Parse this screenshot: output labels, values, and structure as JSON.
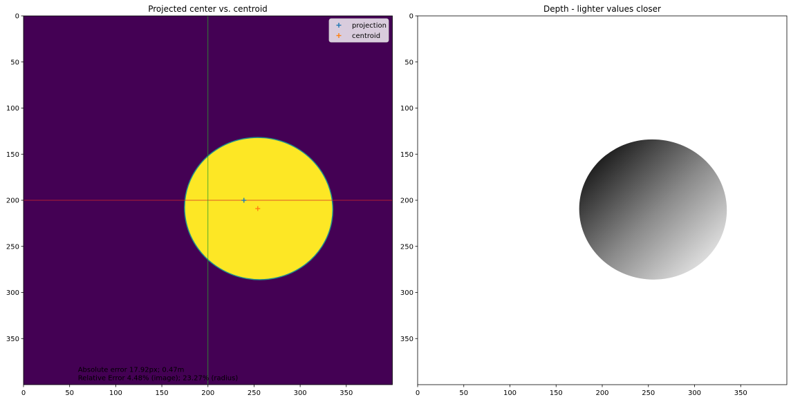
{
  "chart_data": [
    {
      "type": "heatmap",
      "title": "Projected center vs. centroid",
      "xlabel": "",
      "ylabel": "",
      "xlim": [
        0,
        400
      ],
      "ylim": [
        400,
        0
      ],
      "xticks": [
        0,
        50,
        100,
        150,
        200,
        250,
        300,
        350
      ],
      "yticks": [
        0,
        50,
        100,
        150,
        200,
        250,
        300,
        350
      ],
      "colors": {
        "background": "#440154",
        "mask": "#fde725",
        "contour": "#21918c",
        "hline": "#d62728",
        "vline": "#2ca02c",
        "projection": "#1f77b4",
        "centroid": "#ff7f0e"
      },
      "mask_ellipse": {
        "cx": 255,
        "cy": 209,
        "rx": 80.5,
        "ry": 77,
        "rotate": 10
      },
      "guide_lines": {
        "y": 200,
        "x": 200
      },
      "series": [
        {
          "name": "projection",
          "marker": "+",
          "points": [
            [
              239,
              200
            ]
          ]
        },
        {
          "name": "centroid",
          "marker": "+",
          "points": [
            [
              254,
              209
            ]
          ]
        }
      ],
      "legend": "upper-right",
      "annotations": [
        "Absolute error 17.92px; 0.47m",
        "Relative Error 4.48% (image); 23.27% (radius)"
      ],
      "annotation_anchor": [
        59,
        383
      ]
    },
    {
      "type": "heatmap",
      "title": "Depth - lighter values closer",
      "xlabel": "",
      "ylabel": "",
      "xlim": [
        0,
        400
      ],
      "ylim": [
        400,
        0
      ],
      "xticks": [
        0,
        50,
        100,
        150,
        200,
        250,
        300,
        350
      ],
      "yticks": [
        0,
        50,
        100,
        150,
        200,
        250,
        300,
        350
      ],
      "colors": {
        "background": "#ffffff",
        "depth_far": "#050505",
        "depth_mid": "#8a8a8a",
        "depth_near": "#ffffff"
      },
      "depth_ellipse": {
        "cx": 255,
        "cy": 210,
        "rx": 80,
        "ry": 76,
        "rotate": 5
      },
      "depth_gradient": {
        "from": [
          175,
          150
        ],
        "to": [
          335,
          285
        ]
      }
    }
  ]
}
